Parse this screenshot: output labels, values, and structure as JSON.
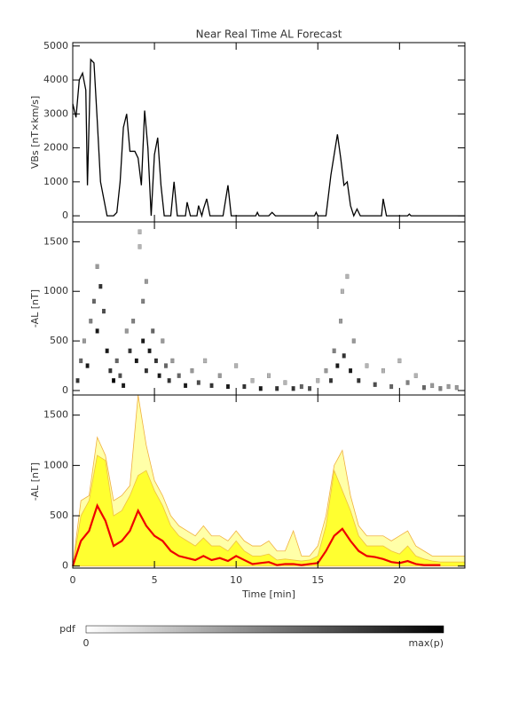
{
  "chart_data": [
    {
      "type": "line",
      "title": "Near Real Time AL Forecast",
      "ylabel": "VBs [nT×km/s]",
      "color": "#000000",
      "x": [
        0,
        0.2,
        0.4,
        0.6,
        0.8,
        0.9,
        1.1,
        1.3,
        1.5,
        1.7,
        1.9,
        2.1,
        2.5,
        2.7,
        2.9,
        3.1,
        3.3,
        3.5,
        3.8,
        4.0,
        4.2,
        4.4,
        4.6,
        4.8,
        5.0,
        5.2,
        5.4,
        5.6,
        6.0,
        6.2,
        6.4,
        6.9,
        7.0,
        7.2,
        7.6,
        7.7,
        7.9,
        8.0,
        8.2,
        8.4,
        9.2,
        9.5,
        9.7,
        11.2,
        11.3,
        11.4,
        12.0,
        12.2,
        12.4,
        14.8,
        14.9,
        15.0,
        15.5,
        15.8,
        16.0,
        16.2,
        16.4,
        16.6,
        16.8,
        17.0,
        17.2,
        17.4,
        17.6,
        18.9,
        19.0,
        19.2,
        20.5,
        20.6,
        20.7,
        24
      ],
      "values": [
        3300,
        2900,
        4000,
        4200,
        3700,
        900,
        4600,
        4500,
        2800,
        1000,
        500,
        0,
        0,
        100,
        1000,
        2600,
        3000,
        1900,
        1900,
        1700,
        900,
        3100,
        2000,
        0,
        1800,
        2300,
        900,
        0,
        0,
        1000,
        0,
        0,
        400,
        0,
        0,
        300,
        0,
        200,
        500,
        0,
        0,
        900,
        0,
        0,
        100,
        0,
        0,
        100,
        0,
        0,
        100,
        0,
        0,
        1200,
        1800,
        2400,
        1700,
        900,
        1000,
        300,
        0,
        200,
        0,
        0,
        500,
        0,
        0,
        50,
        0,
        0
      ],
      "xlim": [
        0,
        24
      ],
      "xticks": [
        0,
        5,
        10,
        15,
        20
      ],
      "ylim": [
        -180,
        5100
      ],
      "yticks": [
        0,
        1000,
        2000,
        3000,
        4000,
        5000
      ]
    },
    {
      "type": "heatmap",
      "ylabel": "-AL [nT]",
      "color": "#000000",
      "x": [
        0.3,
        0.5,
        0.7,
        0.9,
        1.1,
        1.3,
        1.5,
        1.5,
        1.7,
        1.9,
        2.1,
        2.3,
        2.5,
        2.7,
        2.9,
        3.1,
        3.3,
        3.5,
        3.7,
        3.9,
        4.1,
        4.1,
        4.3,
        4.3,
        4.5,
        4.5,
        4.7,
        4.9,
        5.1,
        5.3,
        5.5,
        5.7,
        5.9,
        6.1,
        6.5,
        6.9,
        7.3,
        7.7,
        8.1,
        8.5,
        9,
        9.5,
        10,
        10.5,
        11,
        11.5,
        12,
        12.5,
        13,
        13.5,
        14,
        14.5,
        15,
        15.5,
        15.8,
        16,
        16.2,
        16.4,
        16.5,
        16.6,
        16.8,
        17,
        17.2,
        17.5,
        18,
        18.5,
        19,
        19.5,
        20,
        20.5,
        21,
        21.5,
        22,
        22.5,
        23,
        23.5
      ],
      "values": [
        100,
        300,
        500,
        250,
        700,
        900,
        1250,
        600,
        1050,
        800,
        400,
        200,
        100,
        300,
        150,
        50,
        600,
        400,
        700,
        300,
        1600,
        1450,
        900,
        500,
        1100,
        200,
        400,
        600,
        300,
        150,
        500,
        250,
        100,
        300,
        150,
        50,
        200,
        80,
        300,
        50,
        150,
        40,
        250,
        40,
        100,
        20,
        150,
        20,
        80,
        20,
        40,
        20,
        100,
        200,
        100,
        400,
        250,
        700,
        1000,
        350,
        1150,
        200,
        500,
        100,
        250,
        60,
        200,
        40,
        300,
        80,
        150,
        30,
        50,
        20,
        40,
        30
      ],
      "intensity": [
        0.8,
        0.6,
        0.4,
        0.9,
        0.5,
        0.6,
        0.4,
        0.9,
        0.8,
        0.7,
        0.9,
        0.8,
        1,
        0.6,
        0.7,
        0.9,
        0.4,
        0.8,
        0.5,
        0.9,
        0.3,
        0.3,
        0.5,
        0.9,
        0.4,
        0.8,
        0.9,
        0.6,
        0.8,
        0.9,
        0.4,
        0.6,
        0.8,
        0.4,
        0.6,
        0.9,
        0.4,
        0.7,
        0.3,
        0.8,
        0.4,
        0.9,
        0.3,
        0.8,
        0.3,
        0.9,
        0.3,
        0.8,
        0.3,
        0.8,
        0.6,
        0.7,
        0.3,
        0.4,
        0.8,
        0.5,
        0.9,
        0.4,
        0.3,
        0.8,
        0.3,
        0.9,
        0.4,
        0.8,
        0.3,
        0.7,
        0.3,
        0.6,
        0.3,
        0.5,
        0.3,
        0.6,
        0.4,
        0.5,
        0.4,
        0.4
      ],
      "xlim": [
        0,
        24
      ],
      "xticks": [
        0,
        5,
        10,
        15,
        20
      ],
      "ylim": [
        -45,
        1700
      ],
      "yticks": [
        0,
        500,
        1000,
        1500
      ]
    },
    {
      "type": "area",
      "ylabel": "-AL [nT]",
      "xlabel": "Time [min]",
      "x": [
        0,
        0.5,
        1,
        1.5,
        2,
        2.5,
        3,
        3.5,
        4,
        4.5,
        5,
        5.5,
        6,
        6.5,
        7,
        7.5,
        8,
        8.5,
        9,
        9.5,
        10,
        10.5,
        11,
        11.5,
        12,
        12.5,
        13,
        13.5,
        14,
        14.5,
        15,
        15.5,
        16,
        16.5,
        17,
        17.5,
        18,
        18.5,
        19,
        19.5,
        20,
        20.5,
        21,
        21.5,
        22,
        22.5,
        23,
        23.5,
        24
      ],
      "series": [
        {
          "color": "#ffffa8",
          "edgecolor": "#f0b040",
          "fill": true,
          "values": [
            0,
            650,
            700,
            1280,
            1100,
            650,
            700,
            800,
            1700,
            1200,
            850,
            700,
            500,
            400,
            350,
            300,
            400,
            300,
            300,
            250,
            350,
            250,
            200,
            200,
            250,
            150,
            150,
            350,
            100,
            100,
            200,
            500,
            1000,
            1150,
            700,
            400,
            300,
            300,
            300,
            250,
            300,
            350,
            200,
            150,
            100,
            100,
            100,
            100,
            100
          ]
        },
        {
          "color": "#ffff30",
          "edgecolor": "#f0c040",
          "fill": true,
          "values": [
            0,
            500,
            650,
            1100,
            1050,
            500,
            550,
            700,
            900,
            950,
            750,
            600,
            400,
            300,
            250,
            200,
            280,
            200,
            200,
            150,
            250,
            150,
            100,
            100,
            120,
            60,
            70,
            60,
            50,
            60,
            100,
            400,
            950,
            750,
            550,
            300,
            200,
            200,
            200,
            150,
            120,
            200,
            100,
            70,
            50,
            40,
            40,
            40,
            40
          ]
        },
        {
          "color": "#ee0000",
          "fill": false,
          "values": [
            0,
            250,
            350,
            600,
            450,
            200,
            250,
            350,
            550,
            400,
            300,
            250,
            150,
            100,
            80,
            60,
            100,
            60,
            80,
            50,
            100,
            60,
            20,
            30,
            40,
            10,
            20,
            20,
            10,
            20,
            30,
            150,
            300,
            370,
            250,
            150,
            100,
            90,
            70,
            40,
            30,
            50,
            20,
            10,
            10,
            10,
            null,
            null,
            null
          ]
        }
      ],
      "xlim": [
        0,
        24
      ],
      "xticks": [
        0,
        5,
        10,
        15,
        20
      ],
      "ylim": [
        -20,
        1700
      ],
      "yticks": [
        0,
        500,
        1000,
        1500
      ]
    }
  ],
  "colorbar": {
    "label": "pdf",
    "min_label": "0",
    "max_label": "max(p)"
  }
}
